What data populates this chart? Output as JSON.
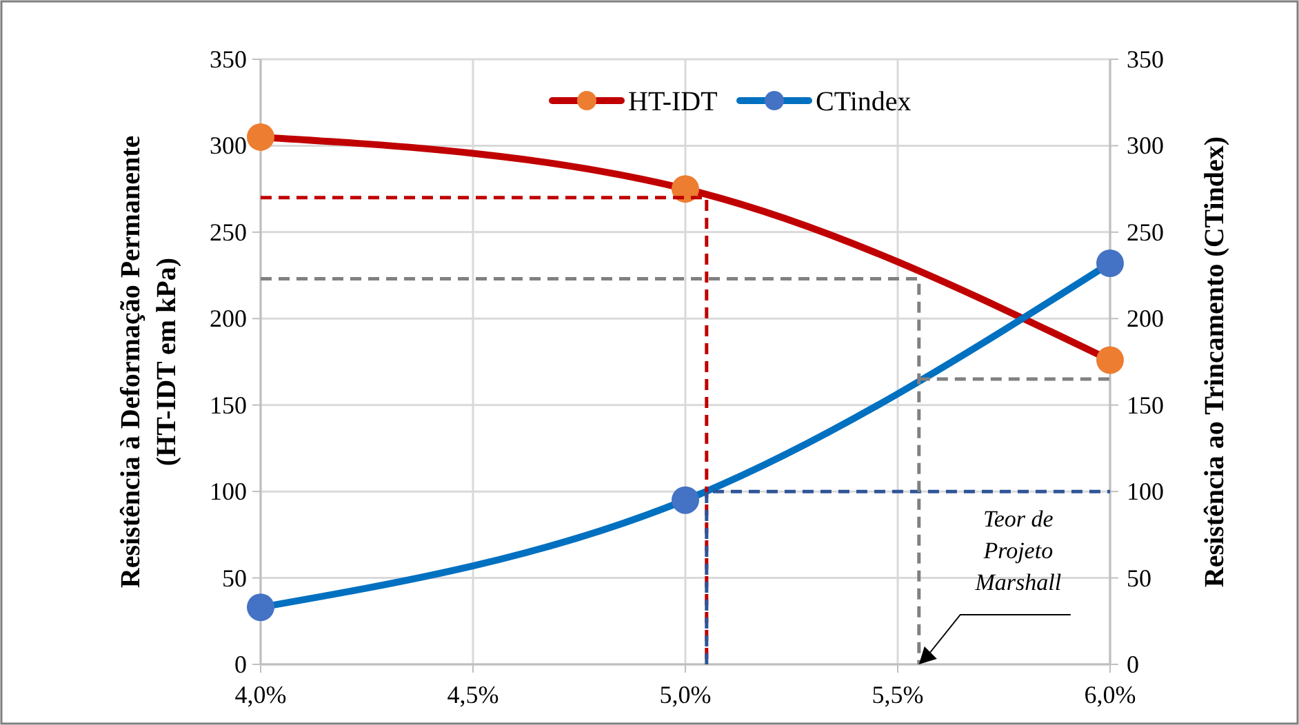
{
  "chart_data": {
    "type": "line",
    "xlabel": null,
    "ylabel": "Resistência à Deformação Permanente\n(HT-IDT em kPa)",
    "y2label": "Resistência ao Trincamento (CTindex)",
    "xlim": [
      4,
      6
    ],
    "xticks": [
      {
        "value": 4,
        "label": "4,0%"
      },
      {
        "value": 4.5,
        "label": "4,5%"
      },
      {
        "value": 5,
        "label": "5,0%"
      },
      {
        "value": 5.5,
        "label": "5,5%"
      },
      {
        "value": 6,
        "label": "6,0%"
      }
    ],
    "ylim": [
      0,
      350
    ],
    "yticks": [
      0,
      50,
      100,
      150,
      200,
      250,
      300,
      350
    ],
    "y2lim": [
      0,
      350
    ],
    "y2ticks": [
      0,
      50,
      100,
      150,
      200,
      250,
      300,
      350
    ],
    "grid": true,
    "legend": "top",
    "marker": "circle",
    "line_style": "solid",
    "series": [
      {
        "name": "HT-IDT",
        "color": "#c00000",
        "colors": [
          "#ed7d31",
          "#ed7d31",
          "#ed7d31"
        ],
        "x": [
          4,
          5,
          6
        ],
        "values": [
          305,
          275,
          176
        ]
      },
      {
        "name": "CTindex",
        "color": "#0070c0",
        "colors": [
          "#4472c4",
          "#4472c4",
          "#4472c4"
        ],
        "x": [
          4,
          5,
          6
        ],
        "values": [
          33,
          95,
          232
        ]
      },
      {
        "color": "#c00000",
        "x": [
          4,
          5.05,
          5.05
        ],
        "values": [
          270,
          270,
          0
        ],
        "line_style": "dashed",
        "marker": "none"
      },
      {
        "color": "#2f5597",
        "x": [
          5.05,
          5.05,
          6
        ],
        "values": [
          0,
          100,
          100
        ],
        "line_style": "dashed",
        "marker": "none"
      },
      {
        "color": "#808080",
        "x": [
          4,
          5.55,
          5.55
        ],
        "values": [
          223,
          223,
          0
        ],
        "line_style": "dashed",
        "marker": "none"
      },
      {
        "color": "#808080",
        "x": [
          5.55,
          6
        ],
        "values": [
          165,
          165
        ],
        "line_style": "dashed",
        "marker": "none"
      }
    ],
    "annotations": [
      {
        "text": "Teor de\nProjeto\nMarshall",
        "x": 5.55,
        "y": 0
      }
    ]
  }
}
